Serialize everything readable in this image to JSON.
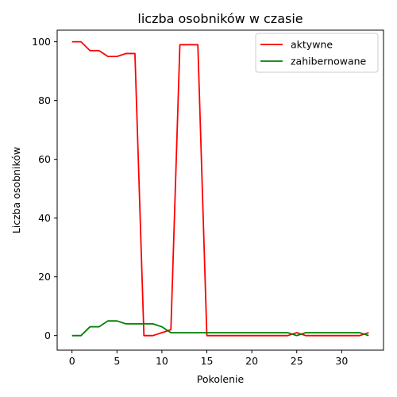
{
  "chart_data": {
    "type": "line",
    "title": "liczba osobników w czasie",
    "xlabel": "Pokolenie",
    "ylabel": "Liczba osobników",
    "xlim": [
      -1.65,
      34.65
    ],
    "ylim": [
      -4.95,
      103.95
    ],
    "xticks": [
      0,
      5,
      10,
      15,
      20,
      25,
      30
    ],
    "yticks": [
      0,
      20,
      40,
      60,
      80,
      100
    ],
    "grid": false,
    "legend_position": "top-right",
    "x": [
      0,
      1,
      2,
      3,
      4,
      5,
      6,
      7,
      8,
      9,
      10,
      11,
      12,
      13,
      14,
      15,
      16,
      17,
      18,
      19,
      20,
      21,
      22,
      23,
      24,
      25,
      26,
      27,
      28,
      29,
      30,
      31,
      32,
      33
    ],
    "series": [
      {
        "name": "aktywne",
        "color": "#ff0000",
        "values": [
          100,
          100,
          97,
          97,
          95,
          95,
          96,
          96,
          0,
          0,
          1,
          2,
          99,
          99,
          99,
          0,
          0,
          0,
          0,
          0,
          0,
          0,
          0,
          0,
          0,
          1,
          0,
          0,
          0,
          0,
          0,
          0,
          0,
          1
        ]
      },
      {
        "name": "zahibernowane",
        "color": "#008000",
        "values": [
          0,
          0,
          3,
          3,
          5,
          5,
          4,
          4,
          4,
          4,
          3,
          1,
          1,
          1,
          1,
          1,
          1,
          1,
          1,
          1,
          1,
          1,
          1,
          1,
          1,
          0,
          1,
          1,
          1,
          1,
          1,
          1,
          1,
          0
        ]
      }
    ]
  }
}
